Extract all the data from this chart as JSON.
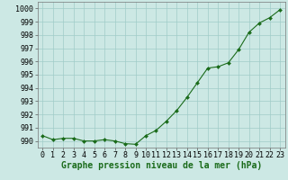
{
  "x": [
    0,
    1,
    2,
    3,
    4,
    5,
    6,
    7,
    8,
    9,
    10,
    11,
    12,
    13,
    14,
    15,
    16,
    17,
    18,
    19,
    20,
    21,
    22,
    23
  ],
  "y": [
    990.4,
    990.1,
    990.2,
    990.2,
    990.0,
    990.0,
    990.1,
    990.0,
    989.8,
    989.75,
    990.4,
    990.8,
    991.5,
    992.3,
    993.3,
    994.4,
    995.5,
    995.6,
    995.9,
    996.9,
    998.2,
    998.9,
    999.3,
    999.9
  ],
  "ylim": [
    989.5,
    1000.5
  ],
  "yticks": [
    990,
    991,
    992,
    993,
    994,
    995,
    996,
    997,
    998,
    999,
    1000
  ],
  "xticks": [
    0,
    1,
    2,
    3,
    4,
    5,
    6,
    7,
    8,
    9,
    10,
    11,
    12,
    13,
    14,
    15,
    16,
    17,
    18,
    19,
    20,
    21,
    22,
    23
  ],
  "line_color": "#1a6b1a",
  "marker_color": "#1a6b1a",
  "bg_color": "#cce8e4",
  "grid_color": "#a0ccc8",
  "xlabel": "Graphe pression niveau de la mer (hPa)",
  "xlabel_fontsize": 7,
  "tick_fontsize": 6,
  "ytick_fontsize": 6,
  "fig_bg": "#cce8e4"
}
